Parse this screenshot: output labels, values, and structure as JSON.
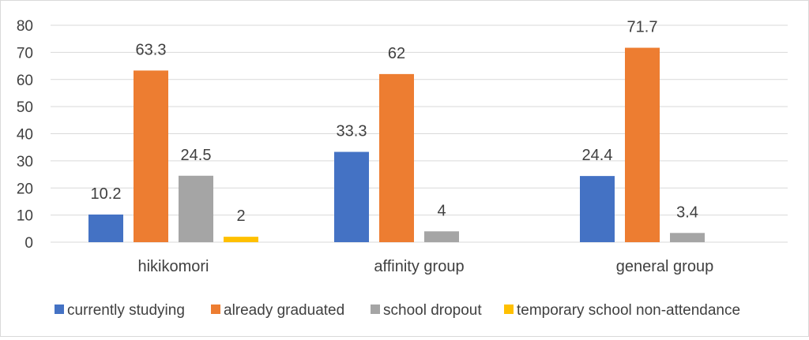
{
  "chart_data": {
    "type": "bar",
    "title": "",
    "xlabel": "",
    "ylabel": "",
    "categories": [
      "hikikomori",
      "affinity group",
      "general group"
    ],
    "ylim": [
      0,
      80
    ],
    "yticks": [
      "0",
      "10",
      "20",
      "30",
      "40",
      "50",
      "60",
      "70",
      "80"
    ],
    "grid": true,
    "legend_position": "bottom",
    "series": [
      {
        "name": "currently studying",
        "color": "#4472c4",
        "values": [
          10.2,
          33.3,
          24.4
        ],
        "labels": [
          "10.2",
          "33.3",
          "24.4"
        ]
      },
      {
        "name": "already graduated",
        "color": "#ed7d31",
        "values": [
          63.3,
          62,
          71.7
        ],
        "labels": [
          "63.3",
          "62",
          "71.7"
        ]
      },
      {
        "name": "school dropout",
        "color": "#a5a5a5",
        "values": [
          24.5,
          4,
          3.4
        ],
        "labels": [
          "24.5",
          "4",
          "3.4"
        ]
      },
      {
        "name": "temporary school non-attendance",
        "color": "#ffc000",
        "values": [
          2,
          null,
          null
        ],
        "labels": [
          "2",
          "",
          ""
        ]
      }
    ]
  }
}
